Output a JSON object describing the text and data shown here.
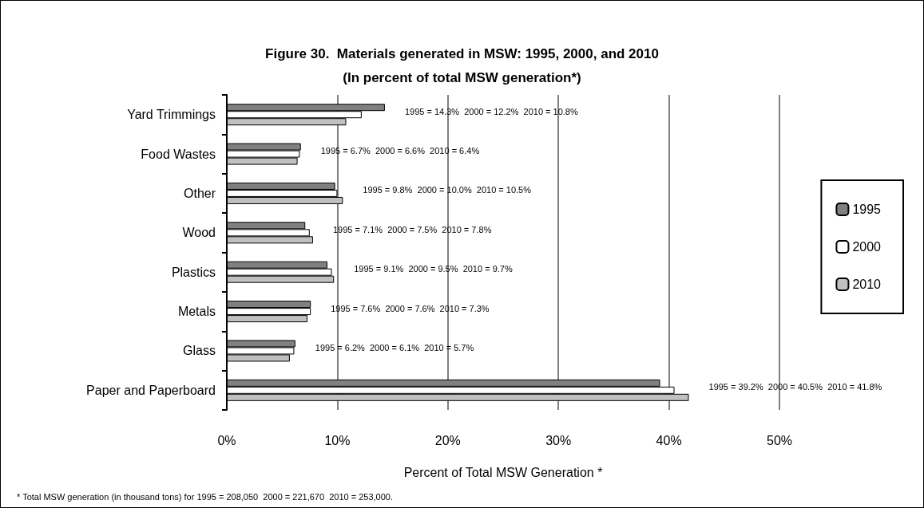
{
  "chart_data": {
    "type": "bar",
    "orientation": "horizontal",
    "title": "Figure 30.  Materials generated in MSW: 1995, 2000, and 2010",
    "subtitle": "(In percent of total MSW generation*)",
    "xlabel": "Percent of Total MSW Generation *",
    "categories": [
      "Yard Trimmings",
      "Food Wastes",
      "Other",
      "Wood",
      "Plastics",
      "Metals",
      "Glass",
      "Paper and Paperboard"
    ],
    "series": [
      {
        "name": "1995",
        "color": "#808080",
        "values": [
          14.3,
          6.7,
          9.8,
          7.1,
          9.1,
          7.6,
          6.2,
          39.2
        ]
      },
      {
        "name": "2000",
        "color": "#ffffff",
        "values": [
          12.2,
          6.6,
          10.0,
          7.5,
          9.5,
          7.6,
          6.1,
          40.5
        ]
      },
      {
        "name": "2010",
        "color": "#c0c0c0",
        "values": [
          10.8,
          6.4,
          10.5,
          7.8,
          9.7,
          7.3,
          5.7,
          41.8
        ]
      }
    ],
    "xlim": [
      0,
      50
    ],
    "xticks": [
      {
        "value": 0,
        "label": "0%"
      },
      {
        "value": 10,
        "label": "10%"
      },
      {
        "value": 20,
        "label": "20%"
      },
      {
        "value": 30,
        "label": "30%"
      },
      {
        "value": 40,
        "label": "40%"
      },
      {
        "value": 50,
        "label": "50%"
      }
    ],
    "grid": "x",
    "legend": "right",
    "annotations": [
      "1995 = 14.3%  2000 = 12.2%  2010 = 10.8%",
      "1995 = 6.7%  2000 = 6.6%  2010 = 6.4%",
      "1995 = 9.8%  2000 = 10.0%  2010 = 10.5%",
      "1995 = 7.1%  2000 = 7.5%  2010 = 7.8%",
      "1995 = 9.1%  2000 = 9.5%  2010 = 9.7%",
      "1995 = 7.6%  2000 = 7.6%  2010 = 7.3%",
      "1995 = 6.2%  2000 = 6.1%  2010 = 5.7%",
      "1995 = 39.2%  2000 = 40.5%  2010 = 41.8%",
      "* Total MSW generation (in thousand tons) for 1995 = 208,050  2000 = 221,670  2010 = 253,000."
    ]
  }
}
